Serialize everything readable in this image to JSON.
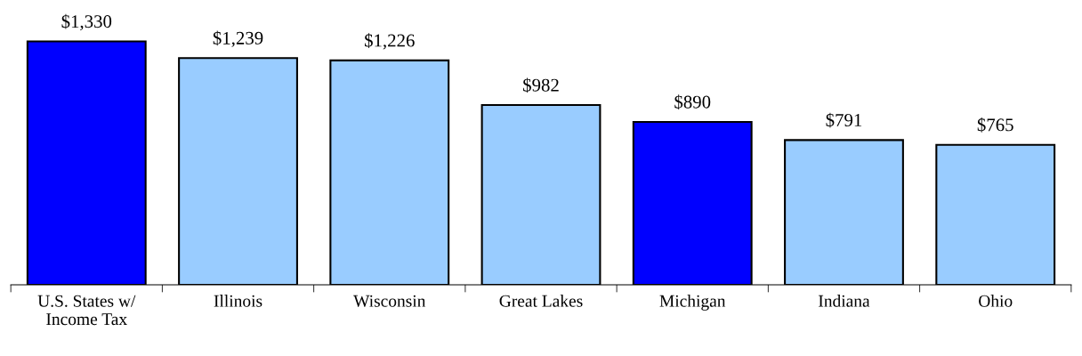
{
  "chart_data": {
    "type": "bar",
    "categories": [
      "U.S. States w/\nIncome Tax",
      "Illinois",
      "Wisconsin",
      "Great Lakes",
      "Michigan",
      "Indiana",
      "Ohio"
    ],
    "values": [
      1330,
      1239,
      1226,
      982,
      890,
      791,
      765
    ],
    "colors": [
      "#0000ff",
      "#99ccff",
      "#99ccff",
      "#99ccff",
      "#0000ff",
      "#99ccff",
      "#99ccff"
    ],
    "value_labels": [
      "$1,330",
      "$1,239",
      "$1,226",
      "$982",
      "$890",
      "$791",
      "$765"
    ],
    "grid": false,
    "legend": false
  }
}
